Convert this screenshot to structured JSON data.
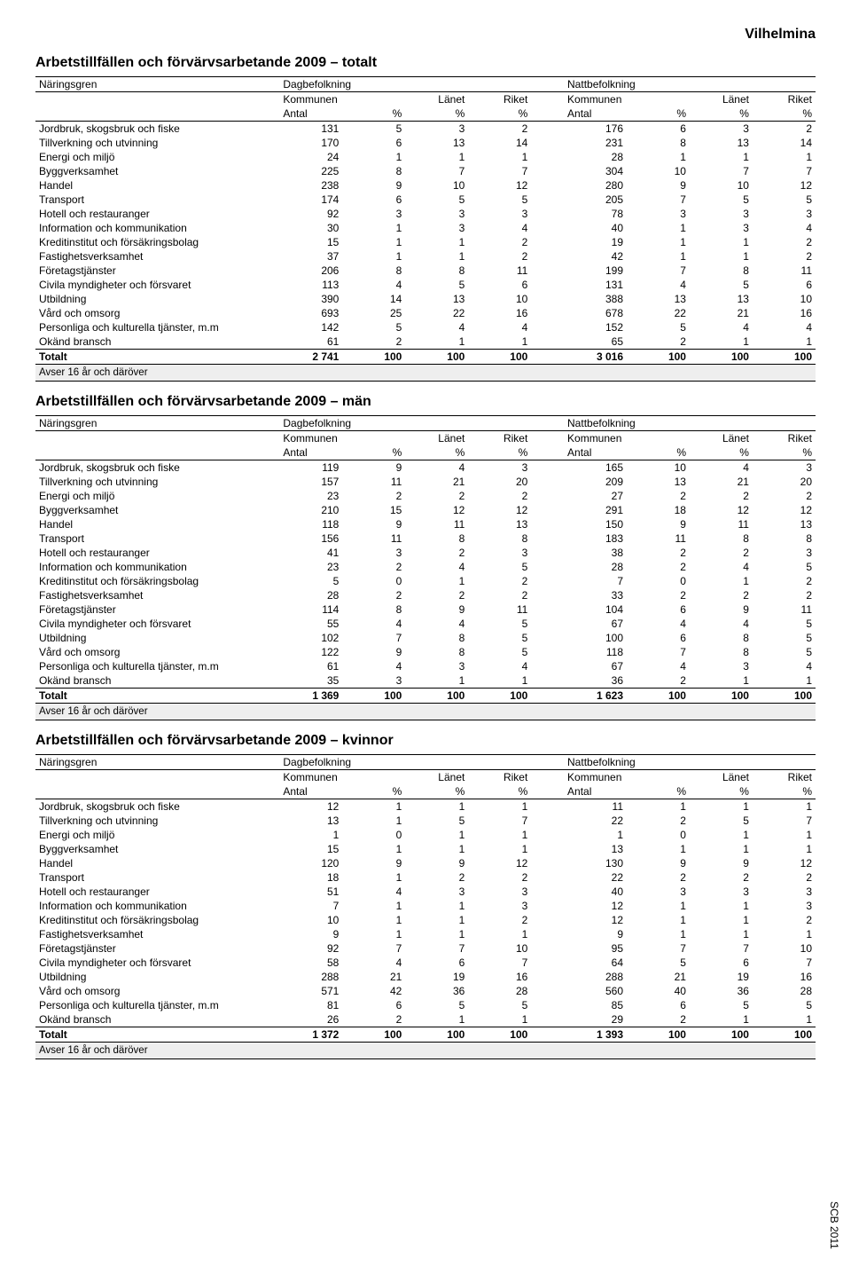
{
  "region": "Vilhelmina",
  "side_label": "SCB 2011",
  "headers": {
    "naringsgren": "Näringsgren",
    "dag": "Dagbefolkning",
    "natt": "Nattbefolkning",
    "kommunen": "Kommunen",
    "lanet": "Länet",
    "riket": "Riket",
    "antal": "Antal",
    "pct": "%"
  },
  "footnote": "Avser 16 år och däröver",
  "row_labels": [
    "Jordbruk, skogsbruk och fiske",
    "Tillverkning och utvinning",
    "Energi och miljö",
    "Byggverksamhet",
    "Handel",
    "Transport",
    "Hotell och restauranger",
    "Information och kommunikation",
    "Kreditinstitut och försäkringsbolag",
    "Fastighetsverksamhet",
    "Företagstjänster",
    "Civila myndigheter och försvaret",
    "Utbildning",
    "Vård och omsorg",
    "Personliga och kulturella tjänster, m.m",
    "Okänd bransch"
  ],
  "total_label": "Totalt",
  "tables": [
    {
      "title": "Arbetstillfällen och förvärvsarbetande 2009 – totalt",
      "rows": [
        [
          "131",
          "5",
          "3",
          "2",
          "176",
          "6",
          "3",
          "2"
        ],
        [
          "170",
          "6",
          "13",
          "14",
          "231",
          "8",
          "13",
          "14"
        ],
        [
          "24",
          "1",
          "1",
          "1",
          "28",
          "1",
          "1",
          "1"
        ],
        [
          "225",
          "8",
          "7",
          "7",
          "304",
          "10",
          "7",
          "7"
        ],
        [
          "238",
          "9",
          "10",
          "12",
          "280",
          "9",
          "10",
          "12"
        ],
        [
          "174",
          "6",
          "5",
          "5",
          "205",
          "7",
          "5",
          "5"
        ],
        [
          "92",
          "3",
          "3",
          "3",
          "78",
          "3",
          "3",
          "3"
        ],
        [
          "30",
          "1",
          "3",
          "4",
          "40",
          "1",
          "3",
          "4"
        ],
        [
          "15",
          "1",
          "1",
          "2",
          "19",
          "1",
          "1",
          "2"
        ],
        [
          "37",
          "1",
          "1",
          "2",
          "42",
          "1",
          "1",
          "2"
        ],
        [
          "206",
          "8",
          "8",
          "11",
          "199",
          "7",
          "8",
          "11"
        ],
        [
          "113",
          "4",
          "5",
          "6",
          "131",
          "4",
          "5",
          "6"
        ],
        [
          "390",
          "14",
          "13",
          "10",
          "388",
          "13",
          "13",
          "10"
        ],
        [
          "693",
          "25",
          "22",
          "16",
          "678",
          "22",
          "21",
          "16"
        ],
        [
          "142",
          "5",
          "4",
          "4",
          "152",
          "5",
          "4",
          "4"
        ],
        [
          "61",
          "2",
          "1",
          "1",
          "65",
          "2",
          "1",
          "1"
        ]
      ],
      "total": [
        "2 741",
        "100",
        "100",
        "100",
        "3 016",
        "100",
        "100",
        "100"
      ]
    },
    {
      "title": "Arbetstillfällen och förvärvsarbetande 2009 – män",
      "rows": [
        [
          "119",
          "9",
          "4",
          "3",
          "165",
          "10",
          "4",
          "3"
        ],
        [
          "157",
          "11",
          "21",
          "20",
          "209",
          "13",
          "21",
          "20"
        ],
        [
          "23",
          "2",
          "2",
          "2",
          "27",
          "2",
          "2",
          "2"
        ],
        [
          "210",
          "15",
          "12",
          "12",
          "291",
          "18",
          "12",
          "12"
        ],
        [
          "118",
          "9",
          "11",
          "13",
          "150",
          "9",
          "11",
          "13"
        ],
        [
          "156",
          "11",
          "8",
          "8",
          "183",
          "11",
          "8",
          "8"
        ],
        [
          "41",
          "3",
          "2",
          "3",
          "38",
          "2",
          "2",
          "3"
        ],
        [
          "23",
          "2",
          "4",
          "5",
          "28",
          "2",
          "4",
          "5"
        ],
        [
          "5",
          "0",
          "1",
          "2",
          "7",
          "0",
          "1",
          "2"
        ],
        [
          "28",
          "2",
          "2",
          "2",
          "33",
          "2",
          "2",
          "2"
        ],
        [
          "114",
          "8",
          "9",
          "11",
          "104",
          "6",
          "9",
          "11"
        ],
        [
          "55",
          "4",
          "4",
          "5",
          "67",
          "4",
          "4",
          "5"
        ],
        [
          "102",
          "7",
          "8",
          "5",
          "100",
          "6",
          "8",
          "5"
        ],
        [
          "122",
          "9",
          "8",
          "5",
          "118",
          "7",
          "8",
          "5"
        ],
        [
          "61",
          "4",
          "3",
          "4",
          "67",
          "4",
          "3",
          "4"
        ],
        [
          "35",
          "3",
          "1",
          "1",
          "36",
          "2",
          "1",
          "1"
        ]
      ],
      "total": [
        "1 369",
        "100",
        "100",
        "100",
        "1 623",
        "100",
        "100",
        "100"
      ]
    },
    {
      "title": "Arbetstillfällen och förvärvsarbetande 2009 – kvinnor",
      "rows": [
        [
          "12",
          "1",
          "1",
          "1",
          "11",
          "1",
          "1",
          "1"
        ],
        [
          "13",
          "1",
          "5",
          "7",
          "22",
          "2",
          "5",
          "7"
        ],
        [
          "1",
          "0",
          "1",
          "1",
          "1",
          "0",
          "1",
          "1"
        ],
        [
          "15",
          "1",
          "1",
          "1",
          "13",
          "1",
          "1",
          "1"
        ],
        [
          "120",
          "9",
          "9",
          "12",
          "130",
          "9",
          "9",
          "12"
        ],
        [
          "18",
          "1",
          "2",
          "2",
          "22",
          "2",
          "2",
          "2"
        ],
        [
          "51",
          "4",
          "3",
          "3",
          "40",
          "3",
          "3",
          "3"
        ],
        [
          "7",
          "1",
          "1",
          "3",
          "12",
          "1",
          "1",
          "3"
        ],
        [
          "10",
          "1",
          "1",
          "2",
          "12",
          "1",
          "1",
          "2"
        ],
        [
          "9",
          "1",
          "1",
          "1",
          "9",
          "1",
          "1",
          "1"
        ],
        [
          "92",
          "7",
          "7",
          "10",
          "95",
          "7",
          "7",
          "10"
        ],
        [
          "58",
          "4",
          "6",
          "7",
          "64",
          "5",
          "6",
          "7"
        ],
        [
          "288",
          "21",
          "19",
          "16",
          "288",
          "21",
          "19",
          "16"
        ],
        [
          "571",
          "42",
          "36",
          "28",
          "560",
          "40",
          "36",
          "28"
        ],
        [
          "81",
          "6",
          "5",
          "5",
          "85",
          "6",
          "5",
          "5"
        ],
        [
          "26",
          "2",
          "1",
          "1",
          "29",
          "2",
          "1",
          "1"
        ]
      ],
      "total": [
        "1 372",
        "100",
        "100",
        "100",
        "1 393",
        "100",
        "100",
        "100"
      ]
    }
  ]
}
